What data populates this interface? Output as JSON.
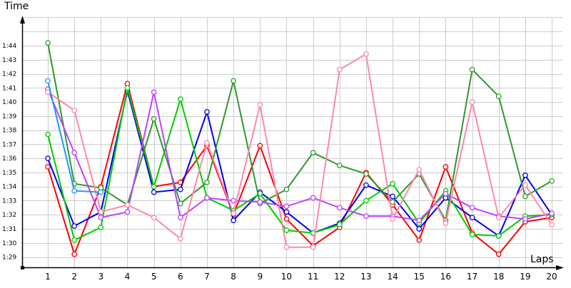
{
  "chart_data": {
    "type": "line",
    "title": "",
    "xlabel": "Laps",
    "ylabel": "Time",
    "x": [
      1,
      2,
      3,
      4,
      5,
      6,
      7,
      8,
      9,
      10,
      11,
      12,
      13,
      14,
      15,
      16,
      17,
      18,
      19,
      20
    ],
    "yticks": [
      "1:29",
      "1:30",
      "1:31",
      "1:32",
      "1:33",
      "1:34",
      "1:35",
      "1:36",
      "1:37",
      "1:38",
      "1:39",
      "1:40",
      "1:41",
      "1:42",
      "1:43",
      "1:44"
    ],
    "ylim_seconds_past_minute": [
      28.2,
      46.5
    ],
    "grid": true,
    "legend": "none",
    "value_unit": "seconds past 1:00 (e.g. 41.5 = 1:41.5)",
    "series": [
      {
        "name": "red",
        "color": "#ff0000",
        "values": [
          35.4,
          29.2,
          34.0,
          41.3,
          34.0,
          34.3,
          36.9,
          32.0,
          36.9,
          31.7,
          29.8,
          31.1,
          35.0,
          32.7,
          30.2,
          35.4,
          30.7,
          29.2,
          31.5,
          31.8
        ]
      },
      {
        "name": "blue",
        "color": "#0000ee",
        "values": [
          36.0,
          31.2,
          32.2,
          40.8,
          33.6,
          33.8,
          39.3,
          31.6,
          33.6,
          32.2,
          30.7,
          31.4,
          34.1,
          33.3,
          31.0,
          33.2,
          31.8,
          30.5,
          34.8,
          32.0
        ]
      },
      {
        "name": "bright-green",
        "color": "#00cc00",
        "values": [
          37.7,
          30.2,
          31.1,
          41.0,
          34.0,
          40.2,
          33.2,
          32.3,
          33.5,
          30.9,
          30.7,
          31.3,
          33.0,
          34.2,
          31.4,
          33.7,
          30.6,
          30.5,
          31.9,
          32.0
        ]
      },
      {
        "name": "dark-green",
        "color": "#2e9a2e",
        "values": [
          44.2,
          34.2,
          33.9,
          32.7,
          38.8,
          32.8,
          34.3,
          41.5,
          32.8,
          33.8,
          36.4,
          35.5,
          34.9,
          32.9,
          34.9,
          31.6,
          42.3,
          40.4,
          33.3,
          34.4
        ]
      },
      {
        "name": "purple",
        "color": "#c040ff",
        "values": [
          40.9,
          36.4,
          31.8,
          32.2,
          40.7,
          31.8,
          33.2,
          33.0,
          32.9,
          32.6,
          33.2,
          32.5,
          31.9,
          31.9,
          31.6,
          33.5,
          32.5,
          31.9,
          31.7,
          32.1
        ]
      },
      {
        "name": "pink",
        "color": "#ff88aa",
        "values": [
          40.7,
          39.4,
          32.2,
          32.7,
          31.8,
          30.3,
          37.1,
          32.1,
          39.8,
          29.7,
          29.7,
          42.3,
          43.4,
          31.7,
          35.2,
          31.4,
          40.0,
          31.8,
          34.1,
          31.3
        ]
      },
      {
        "name": "light-blue",
        "color": "#1e96ff",
        "values": [
          41.5,
          33.7,
          33.6,
          null,
          null,
          null,
          null,
          null,
          null,
          null,
          null,
          null,
          null,
          null,
          null,
          null,
          null,
          null,
          null,
          null
        ]
      }
    ]
  },
  "axes": {
    "y_title": "Time",
    "x_title": "Laps"
  }
}
